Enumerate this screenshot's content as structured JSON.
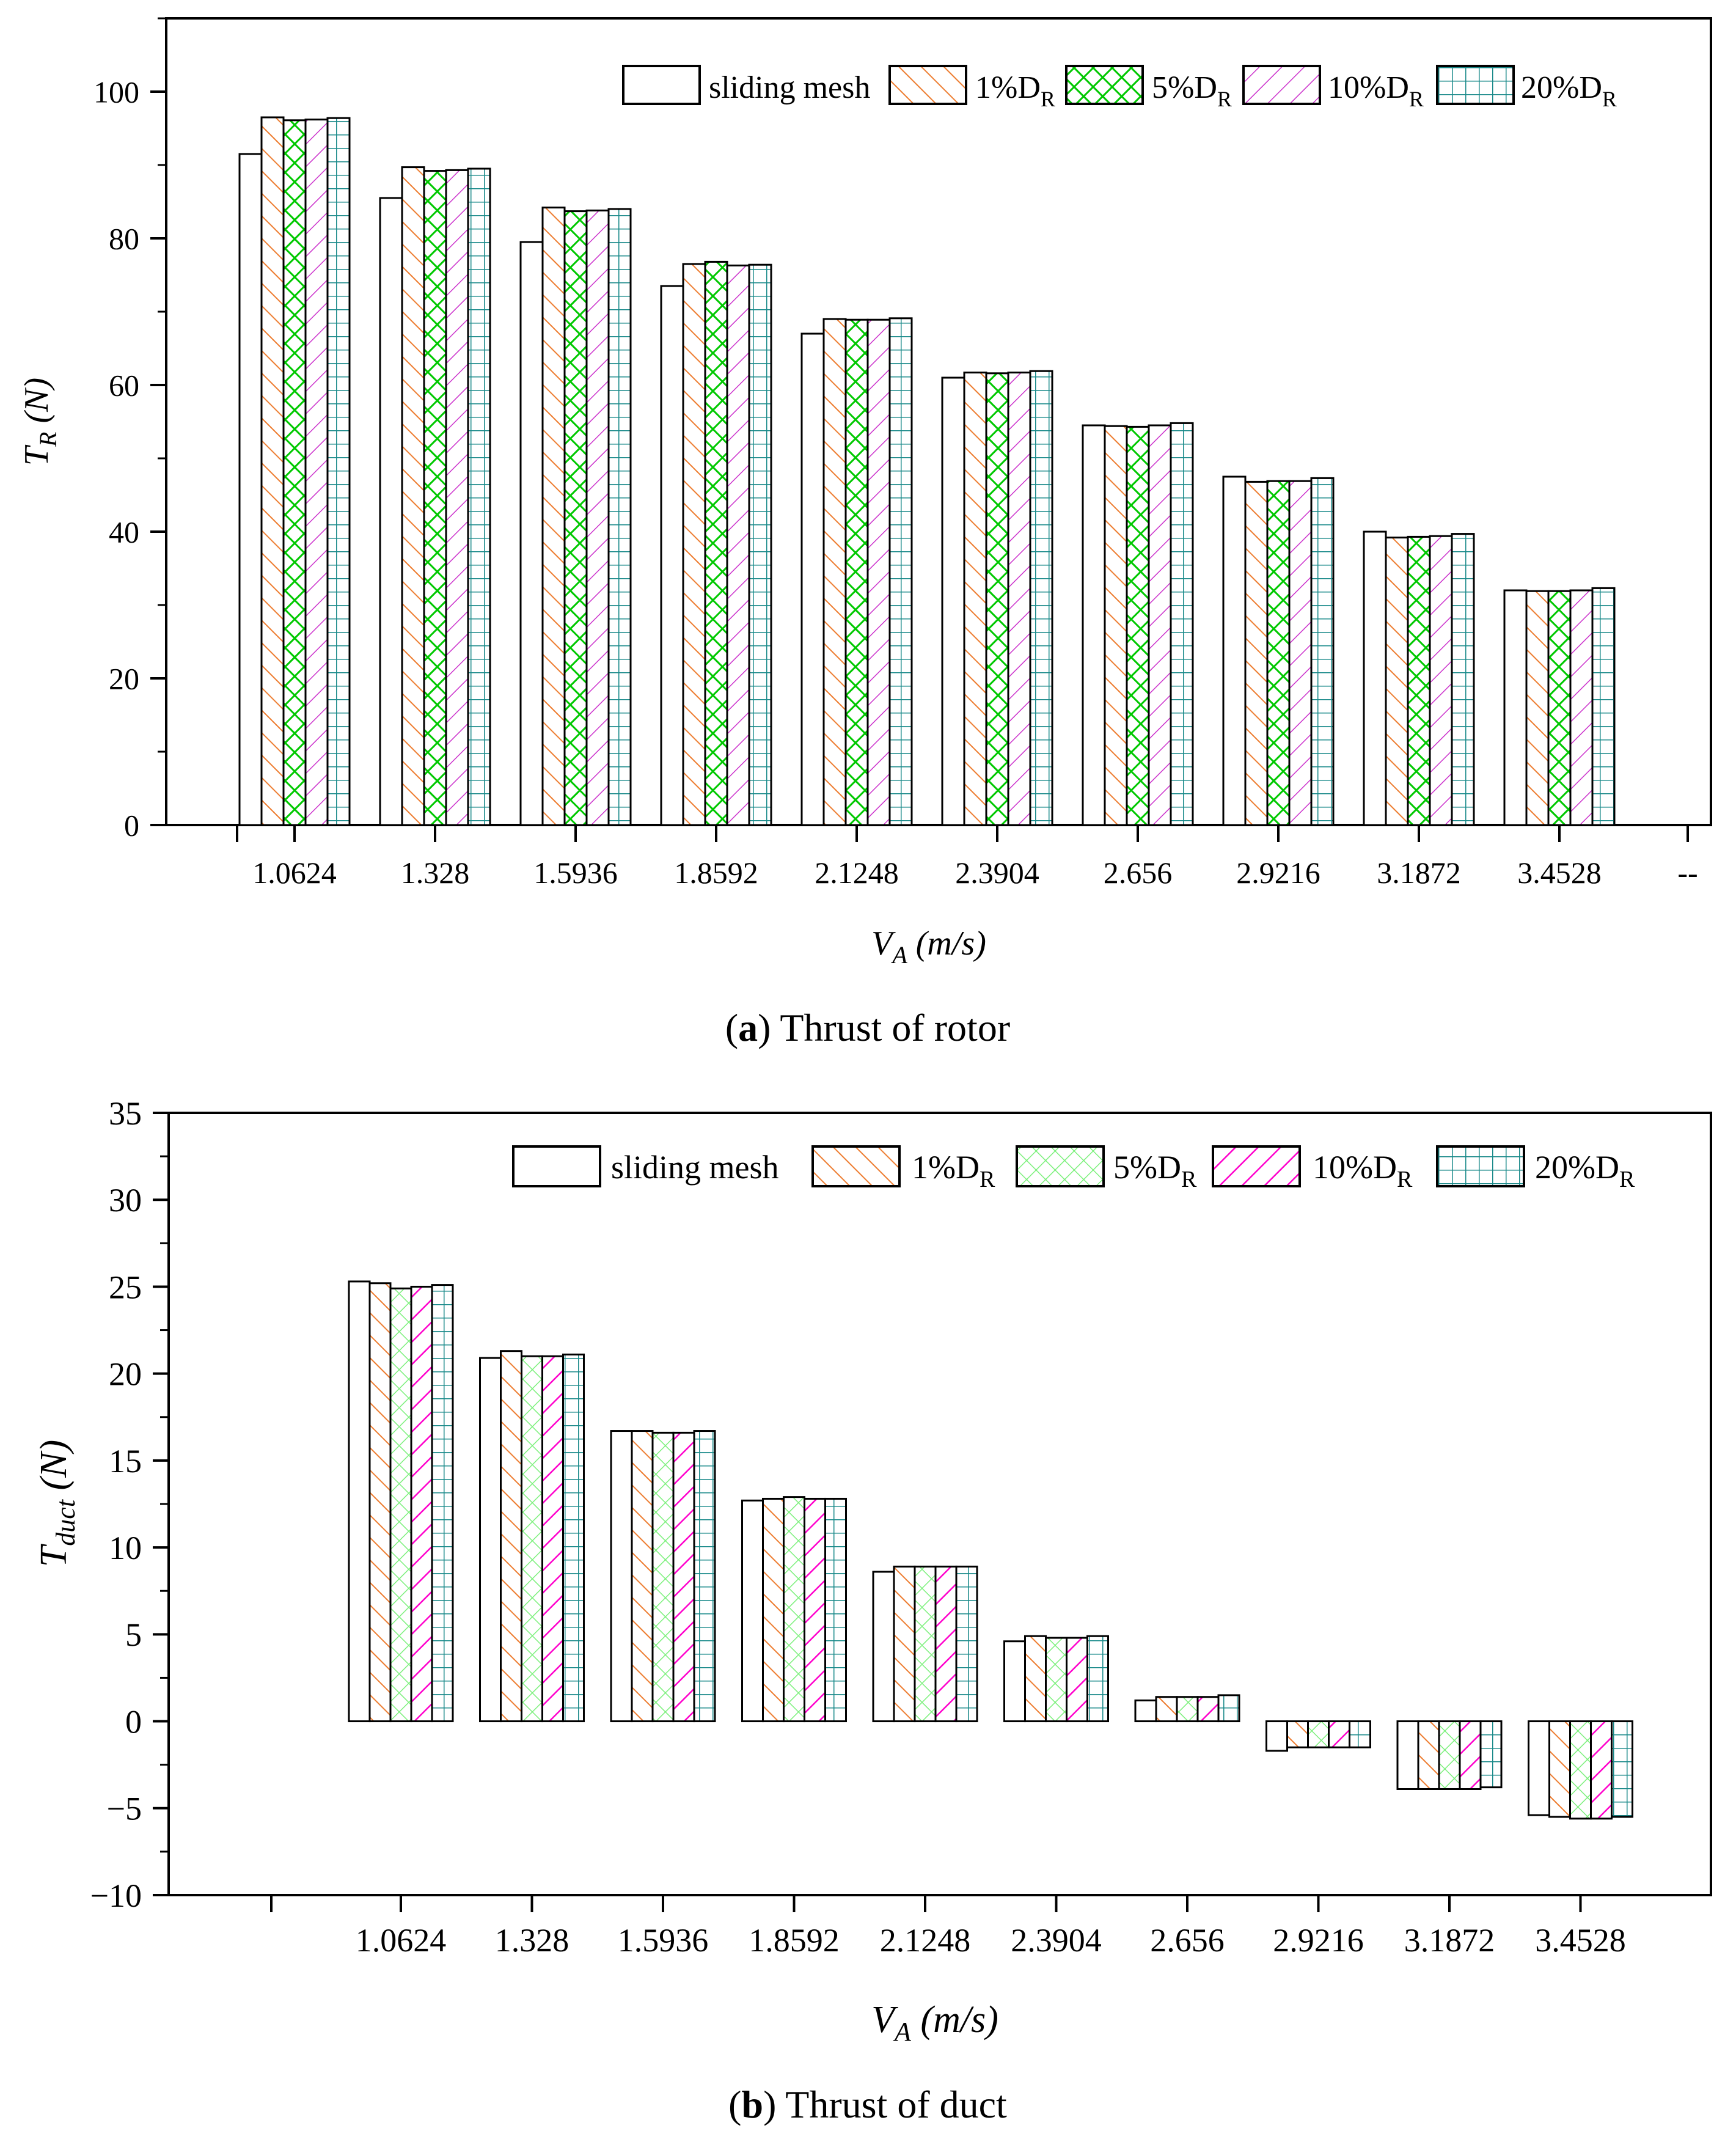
{
  "colors": {
    "sliding_mesh": "#000000",
    "dr1": "#ED7D31",
    "dr5_a": "#00C800",
    "dr5_b": "#7CF07C",
    "dr10": "#CC33CC",
    "dr10_b": "#FF00CC",
    "dr20": "#1A8A8A"
  },
  "legend": {
    "sliding": "sliding mesh",
    "d1": "1%D",
    "d5": "5%D",
    "d10": "10%D",
    "d20": "20%D",
    "sub": "R"
  },
  "chart_data": [
    {
      "type": "bar",
      "caption_letter": "a",
      "caption_rest": ") Thrust of rotor",
      "caption_open": "(",
      "ylabel_main": "T",
      "ylabel_sub": "R",
      "ylabel_unit": " (N)",
      "xlabel_main": "V",
      "xlabel_sub": "A",
      "xlabel_unit": " (m/s)",
      "ylim": [
        0,
        110
      ],
      "yticks": [
        0,
        20,
        40,
        60,
        80,
        100
      ],
      "extra_tick_label": "--",
      "categories": [
        "1.0624",
        "1.328",
        "1.5936",
        "1.8592",
        "2.1248",
        "2.3904",
        "2.656",
        "2.9216",
        "3.1872",
        "3.4528"
      ],
      "series": [
        {
          "name": "sliding mesh",
          "values": [
            91.5,
            85.5,
            79.5,
            73.5,
            67.0,
            61.0,
            54.5,
            47.5,
            40.0,
            32.0
          ]
        },
        {
          "name": "1%DR",
          "values": [
            96.5,
            89.7,
            84.2,
            76.5,
            69.0,
            61.7,
            54.4,
            46.8,
            39.2,
            31.9
          ]
        },
        {
          "name": "5%DR",
          "values": [
            96.1,
            89.2,
            83.7,
            76.8,
            68.9,
            61.6,
            54.3,
            46.9,
            39.3,
            31.9
          ]
        },
        {
          "name": "10%DR",
          "values": [
            96.2,
            89.3,
            83.8,
            76.3,
            68.9,
            61.7,
            54.5,
            46.9,
            39.4,
            32.0
          ]
        },
        {
          "name": "20%DR",
          "values": [
            96.4,
            89.5,
            84.0,
            76.4,
            69.1,
            61.9,
            54.8,
            47.3,
            39.7,
            32.3
          ]
        }
      ]
    },
    {
      "type": "bar",
      "caption_letter": "b",
      "caption_rest": ") Thrust of duct",
      "caption_open": "(",
      "ylabel_main": "T",
      "ylabel_sub": "duct",
      "ylabel_unit": " (N)",
      "xlabel_main": "V",
      "xlabel_sub": "A",
      "xlabel_unit": " (m/s)",
      "ylim": [
        -10,
        35
      ],
      "yticks": [
        -10,
        -5,
        0,
        5,
        10,
        15,
        20,
        25,
        30,
        35
      ],
      "categories": [
        "1.0624",
        "1.328",
        "1.5936",
        "1.8592",
        "2.1248",
        "2.3904",
        "2.656",
        "2.9216",
        "3.1872",
        "3.4528"
      ],
      "series": [
        {
          "name": "sliding mesh",
          "values": [
            25.3,
            20.9,
            16.7,
            12.7,
            8.6,
            4.6,
            1.2,
            -1.7,
            -3.9,
            -5.4
          ]
        },
        {
          "name": "1%DR",
          "values": [
            25.2,
            21.3,
            16.7,
            12.8,
            8.9,
            4.9,
            1.4,
            -1.5,
            -3.9,
            -5.5
          ]
        },
        {
          "name": "5%DR",
          "values": [
            24.9,
            21.0,
            16.6,
            12.9,
            8.9,
            4.8,
            1.4,
            -1.5,
            -3.9,
            -5.6
          ]
        },
        {
          "name": "10%DR",
          "values": [
            25.0,
            21.0,
            16.6,
            12.8,
            8.9,
            4.8,
            1.4,
            -1.5,
            -3.9,
            -5.6
          ]
        },
        {
          "name": "20%DR",
          "values": [
            25.1,
            21.1,
            16.7,
            12.8,
            8.9,
            4.9,
            1.5,
            -1.5,
            -3.8,
            -5.5
          ]
        }
      ]
    }
  ]
}
